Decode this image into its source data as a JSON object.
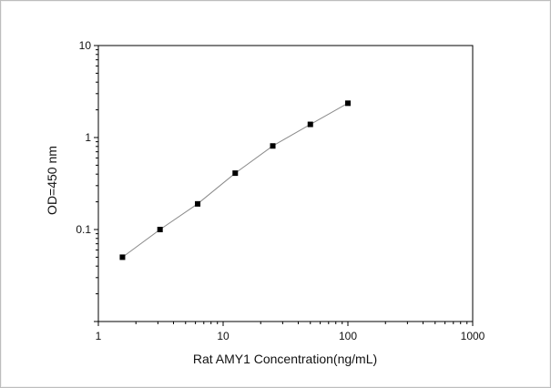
{
  "chart_data": {
    "type": "scatter",
    "x_scale": "log",
    "y_scale": "log",
    "xlim": [
      1,
      1000
    ],
    "ylim": [
      0.01,
      10
    ],
    "xlabel": "Rat AMY1 Concentration(ng/mL)",
    "ylabel": "OD=450 nm",
    "x_ticks": [
      1,
      10,
      100,
      1000
    ],
    "x_tick_labels": [
      "1",
      "10",
      "100",
      "1000"
    ],
    "y_ticks": [
      0.1,
      1,
      10
    ],
    "y_tick_labels": [
      "0.1",
      "1",
      "10"
    ],
    "grid": false,
    "legend": "none",
    "series": [
      {
        "x": [
          1.56,
          3.12,
          6.25,
          12.5,
          25,
          50,
          100
        ],
        "y": [
          0.05,
          0.1,
          0.19,
          0.41,
          0.81,
          1.39,
          2.36
        ],
        "marker": "square",
        "line": true,
        "color": "#000000",
        "line_color": "#8a8a8a"
      }
    ]
  }
}
